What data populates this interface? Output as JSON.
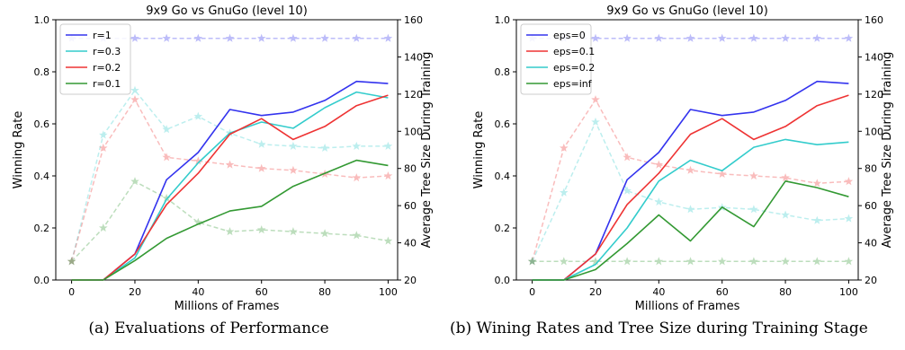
{
  "captions": {
    "a": "(a) Evaluations of Performance",
    "b": "(b) Wining Rates and Tree Size during Training Stage"
  },
  "chart_data": [
    {
      "type": "line",
      "title": "9x9 Go vs GnuGo (level 10)",
      "xlabel": "Millions of Frames",
      "ylabel": "Winning Rate",
      "y2label": "Average Tree Size During Training",
      "xlim": [
        -5,
        103
      ],
      "ylim": [
        0,
        1.0
      ],
      "y2lim": [
        20,
        160
      ],
      "xticks": [
        0,
        20,
        40,
        60,
        80,
        100
      ],
      "yticks": [
        0.0,
        0.2,
        0.4,
        0.6,
        0.8,
        1.0
      ],
      "y2ticks": [
        20,
        40,
        60,
        80,
        100,
        120,
        140,
        160
      ],
      "legend": "top-left",
      "grid": false,
      "x": [
        0,
        10,
        20,
        30,
        40,
        50,
        60,
        70,
        80,
        90,
        100
      ],
      "series": [
        {
          "name": "r=1",
          "color": "#3333ee",
          "axis": "left",
          "values": [
            0.0,
            0.0,
            0.1,
            0.385,
            0.49,
            0.655,
            0.632,
            0.645,
            0.69,
            0.763,
            0.755
          ]
        },
        {
          "name": "r=0.3",
          "color": "#33cccc",
          "axis": "left",
          "values": [
            0.0,
            0.0,
            0.085,
            0.31,
            0.45,
            0.565,
            0.607,
            0.583,
            0.662,
            0.722,
            0.7
          ]
        },
        {
          "name": "r=0.2",
          "color": "#ee3333",
          "axis": "left",
          "values": [
            0.0,
            0.0,
            0.1,
            0.29,
            0.41,
            0.56,
            0.62,
            0.54,
            0.59,
            0.67,
            0.71
          ]
        },
        {
          "name": "r=0.1",
          "color": "#339933",
          "axis": "left",
          "values": [
            0.0,
            0.0,
            0.075,
            0.16,
            0.215,
            0.265,
            0.283,
            0.36,
            0.41,
            0.46,
            0.44
          ]
        }
      ],
      "tree_size_series": [
        {
          "color": "#3333ee",
          "values": [
            150,
            150,
            150,
            150,
            150,
            150,
            150,
            150,
            150,
            150,
            150
          ]
        },
        {
          "color": "#33cccc",
          "values": [
            30,
            98,
            122,
            101,
            108,
            99,
            93,
            92,
            91,
            92,
            92
          ]
        },
        {
          "color": "#ee3333",
          "values": [
            30,
            91,
            117,
            86,
            84,
            82,
            80,
            79,
            77,
            75,
            76
          ]
        },
        {
          "color": "#339933",
          "values": [
            30,
            48,
            73,
            64,
            51,
            46,
            47,
            46,
            45,
            44,
            41
          ]
        }
      ]
    },
    {
      "type": "line",
      "title": "9x9 Go vs GnuGo (level 10)",
      "xlabel": "Millions of Frames",
      "ylabel": "Winning Rate",
      "y2label": "Average Tree Size During Training",
      "xlim": [
        -5,
        103
      ],
      "ylim": [
        0,
        1.0
      ],
      "y2lim": [
        20,
        160
      ],
      "xticks": [
        0,
        20,
        40,
        60,
        80,
        100
      ],
      "yticks": [
        0.0,
        0.2,
        0.4,
        0.6,
        0.8,
        1.0
      ],
      "y2ticks": [
        20,
        40,
        60,
        80,
        100,
        120,
        140,
        160
      ],
      "legend": "top-left",
      "grid": false,
      "x": [
        0,
        10,
        20,
        30,
        40,
        50,
        60,
        70,
        80,
        90,
        100
      ],
      "series": [
        {
          "name": "eps=0",
          "color": "#3333ee",
          "axis": "left",
          "values": [
            0.0,
            0.0,
            0.1,
            0.385,
            0.49,
            0.655,
            0.632,
            0.645,
            0.69,
            0.763,
            0.755
          ]
        },
        {
          "name": "eps=0.1",
          "color": "#ee3333",
          "axis": "left",
          "values": [
            0.0,
            0.0,
            0.1,
            0.29,
            0.41,
            0.56,
            0.62,
            0.54,
            0.59,
            0.67,
            0.71
          ]
        },
        {
          "name": "eps=0.2",
          "color": "#33cccc",
          "axis": "left",
          "values": [
            0.0,
            0.0,
            0.06,
            0.2,
            0.38,
            0.46,
            0.42,
            0.51,
            0.54,
            0.52,
            0.53
          ]
        },
        {
          "name": "eps=inf",
          "color": "#339933",
          "axis": "left",
          "values": [
            0.0,
            0.0,
            0.04,
            0.14,
            0.25,
            0.15,
            0.28,
            0.205,
            0.38,
            0.355,
            0.32
          ]
        }
      ],
      "tree_size_series": [
        {
          "color": "#3333ee",
          "values": [
            150,
            150,
            150,
            150,
            150,
            150,
            150,
            150,
            150,
            150,
            150
          ]
        },
        {
          "color": "#ee3333",
          "values": [
            30,
            91,
            117,
            86,
            82,
            79,
            77,
            76,
            75,
            72,
            73
          ]
        },
        {
          "color": "#33cccc",
          "values": [
            30,
            67,
            105,
            68,
            62,
            58,
            59,
            58,
            55,
            52,
            53
          ]
        },
        {
          "color": "#339933",
          "values": [
            30,
            30,
            30,
            30,
            30,
            30,
            30,
            30,
            30,
            30,
            30
          ]
        }
      ]
    }
  ]
}
